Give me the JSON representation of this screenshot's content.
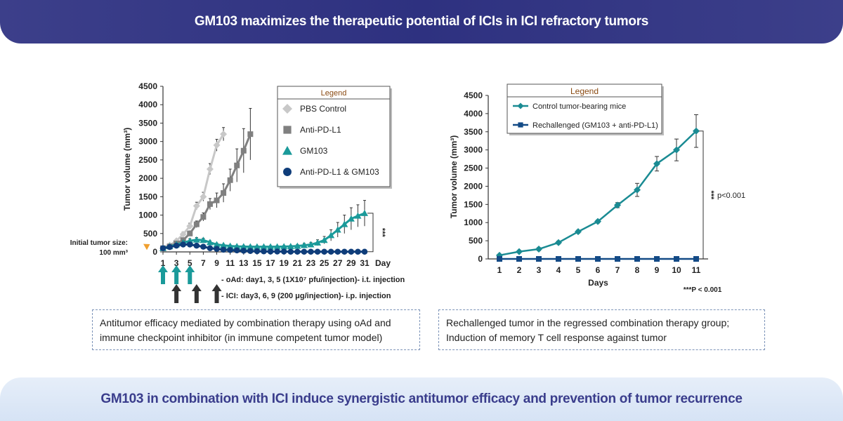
{
  "top_banner": "GM103 maximizes the therapeutic potential of ICIs in ICI refractory tumors",
  "bottom_banner": "GM103 in combination with ICI induce synergistic antitumor efficacy and prevention of tumor recurrence",
  "left_box": {
    "line1": "Antitumor efficacy mediated by combination therapy using oAd and",
    "line2": "immune checkpoint inhibitor (in immune competent tumor model)"
  },
  "right_box": {
    "line1": "Rechallenged tumor in the regressed combination therapy group;",
    "line2": "Induction of memory T cell response against tumor"
  },
  "chart1_text": {
    "ylabel": "Tumor volume (mm³)",
    "xlabel": "Day",
    "legend_title": "Legend",
    "initial_label_1": "Initial tumor size:",
    "initial_label_2": "100 mm³",
    "sig": "***",
    "oad_note": "- oAd: day1, 3, 5 (1X10⁷ pfu/injection)- i.t. injection",
    "ici_note": "- ICI: day3, 6, 9 (200 μg/injection)- i.p. injection"
  },
  "chart2_text": {
    "ylabel": "Tumor volume (mm³)",
    "xlabel": "Days",
    "legend_title": "Legend",
    "sig": "***",
    "p_label": "p<0.001",
    "footnote": "***P < 0.001"
  },
  "colors": {
    "pbs": "#c8c8c8",
    "anti_pdl1": "#808080",
    "gm103": "#1a9a9a",
    "combo": "#0f3d7a",
    "control_line": "#1a8b93",
    "rechallenged": "#134a86",
    "legend_title": "#8a4a12",
    "arrow_orange": "#f0a030"
  },
  "chart_data": [
    {
      "type": "line",
      "ylim": [
        0,
        4500
      ],
      "yticks": [
        0,
        500,
        1000,
        1500,
        2000,
        2500,
        3000,
        3500,
        4000,
        4500
      ],
      "xticks": [
        1,
        3,
        5,
        7,
        9,
        11,
        13,
        15,
        17,
        19,
        21,
        23,
        25,
        27,
        29,
        31
      ],
      "xlim": [
        1,
        31
      ],
      "legend_placement": "top-right",
      "series": [
        {
          "name": "PBS Control",
          "marker": "diamond",
          "x": [
            1,
            2,
            3,
            4,
            5,
            6,
            7,
            8,
            9,
            10
          ],
          "y": [
            100,
            180,
            300,
            480,
            700,
            1250,
            1500,
            2250,
            2900,
            3200
          ],
          "err": [
            20,
            30,
            40,
            60,
            80,
            100,
            120,
            150,
            160,
            180
          ]
        },
        {
          "name": "Anti-PD-L1",
          "marker": "square",
          "x": [
            1,
            2,
            3,
            4,
            5,
            6,
            7,
            8,
            9,
            10,
            11,
            12,
            13,
            14
          ],
          "y": [
            100,
            150,
            230,
            320,
            500,
            750,
            950,
            1300,
            1400,
            1600,
            1950,
            2350,
            2750,
            3200
          ],
          "err": [
            20,
            30,
            40,
            50,
            70,
            90,
            110,
            150,
            200,
            250,
            300,
            450,
            600,
            700
          ]
        },
        {
          "name": "GM103",
          "marker": "triangle",
          "x": [
            1,
            2,
            3,
            4,
            5,
            6,
            7,
            8,
            9,
            10,
            11,
            12,
            13,
            14,
            15,
            16,
            17,
            18,
            19,
            20,
            21,
            22,
            23,
            24,
            25,
            26,
            27,
            28,
            29,
            30,
            31
          ],
          "y": [
            100,
            150,
            200,
            250,
            300,
            330,
            320,
            260,
            200,
            180,
            160,
            150,
            145,
            140,
            140,
            140,
            140,
            140,
            145,
            150,
            160,
            180,
            200,
            250,
            320,
            450,
            600,
            750,
            900,
            980,
            1050
          ],
          "err": [
            20,
            30,
            40,
            50,
            60,
            60,
            50,
            40,
            40,
            30,
            30,
            30,
            30,
            30,
            30,
            30,
            30,
            30,
            30,
            30,
            40,
            50,
            60,
            80,
            100,
            150,
            200,
            250,
            300,
            300,
            350
          ]
        },
        {
          "name": "Anti-PD-L1 & GM103",
          "marker": "circle",
          "x": [
            1,
            2,
            3,
            4,
            5,
            6,
            7,
            8,
            9,
            10,
            11,
            12,
            13,
            14,
            15,
            16,
            17,
            18,
            19,
            20,
            21,
            22,
            23,
            24,
            25,
            26,
            27,
            28,
            29,
            30,
            31
          ],
          "y": [
            100,
            130,
            170,
            200,
            200,
            170,
            140,
            100,
            80,
            60,
            50,
            40,
            30,
            25,
            20,
            15,
            10,
            10,
            10,
            5,
            5,
            5,
            5,
            5,
            5,
            5,
            5,
            5,
            5,
            5,
            5
          ],
          "err": [
            20,
            30,
            30,
            40,
            40,
            30,
            30,
            20,
            20,
            10,
            10,
            10,
            10,
            5,
            5,
            5,
            5,
            5,
            5,
            5,
            5,
            5,
            5,
            5,
            5,
            5,
            5,
            5,
            5,
            5,
            5
          ]
        }
      ],
      "oad_arrows_days": [
        1,
        3,
        5
      ],
      "ici_arrows_days": [
        3,
        6,
        9
      ]
    },
    {
      "type": "line",
      "ylim": [
        0,
        4500
      ],
      "yticks": [
        0,
        500,
        1000,
        1500,
        2000,
        2500,
        3000,
        3500,
        4000,
        4500
      ],
      "categories": [
        1,
        2,
        3,
        4,
        5,
        6,
        7,
        8,
        9,
        10,
        11
      ],
      "legend_placement": "top",
      "series": [
        {
          "name": "Control tumor-bearing mice",
          "marker": "diamond",
          "values": [
            100,
            200,
            270,
            450,
            750,
            1030,
            1480,
            1900,
            2620,
            3000,
            3520
          ],
          "err": [
            20,
            30,
            40,
            40,
            40,
            40,
            70,
            180,
            200,
            300,
            450
          ]
        },
        {
          "name": "Rechallenged (GM103 + anti-PD-L1)",
          "marker": "square",
          "values": [
            0,
            0,
            0,
            0,
            0,
            0,
            0,
            0,
            0,
            0,
            0
          ],
          "err": [
            0,
            0,
            0,
            0,
            0,
            0,
            0,
            0,
            0,
            0,
            0
          ]
        }
      ]
    }
  ]
}
